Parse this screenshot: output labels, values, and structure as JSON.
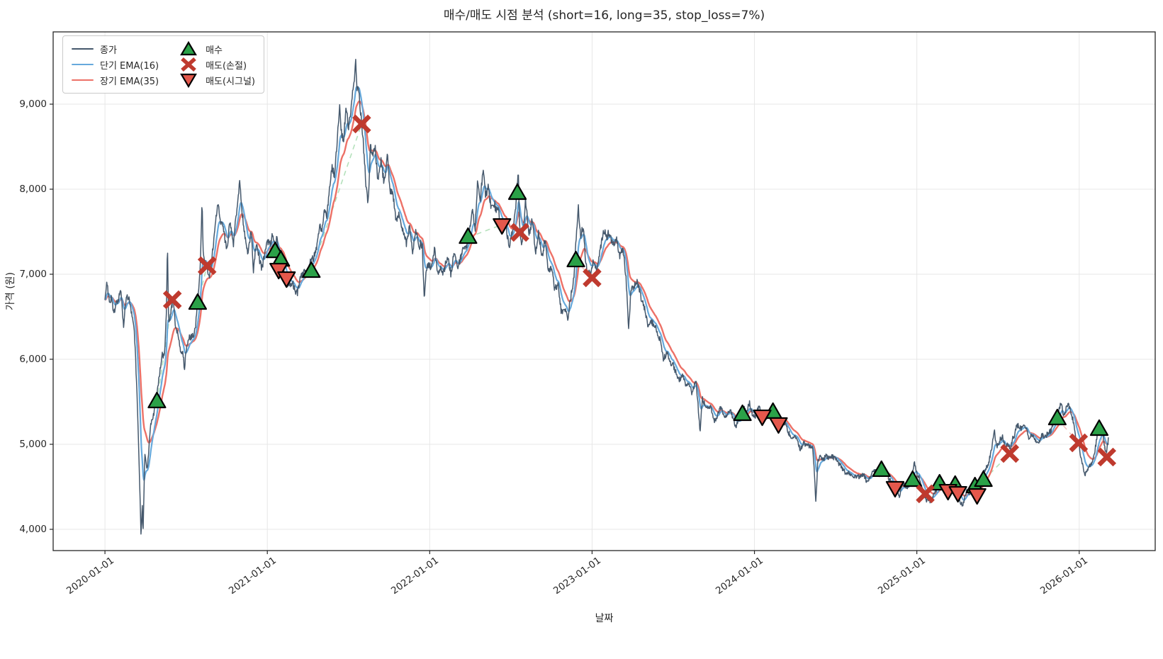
{
  "legend": {
    "items": [
      {
        "kind": "line",
        "color": "#45586c",
        "label": "종가"
      },
      {
        "kind": "line",
        "color": "#66a9dc",
        "label": "단기 EMA(16)"
      },
      {
        "kind": "line",
        "color": "#ed7167",
        "label": "장기 EMA(35)"
      },
      {
        "kind": "marker_up",
        "color": "#2ba148",
        "label": "매수"
      },
      {
        "kind": "marker_x",
        "color": "#bf3a2e",
        "label": "매도(손절)"
      },
      {
        "kind": "marker_down",
        "color": "#e4584c",
        "label": "매도(시그널)"
      }
    ]
  },
  "colors": {
    "close": "#45586c",
    "ema_short": "#66a9dc",
    "ema_long": "#ed7167",
    "buy": "#2ba148",
    "sell_stop": "#bf3a2e",
    "sell_signal": "#e4584c",
    "marker_edge": "#000000",
    "grid": "#e7e7e7",
    "frame": "#262626",
    "text": "#262626",
    "hold_win": "#a8dcb0",
    "hold_loss": "#f2b8b2"
  },
  "chart_data": {
    "type": "line",
    "title": "매수/매도 시점 분석 (short=16, long=35, stop_loss=7%)",
    "xlabel": "날짜",
    "ylabel": "가격 (원)",
    "x_tick_labels": [
      "2020-01-01",
      "2021-01-01",
      "2022-01-01",
      "2023-01-01",
      "2024-01-01",
      "2025-01-01",
      "2026-01-01"
    ],
    "x_tick_values": [
      2020,
      2021,
      2022,
      2023,
      2024,
      2025,
      2026
    ],
    "y_tick_labels": [
      "4,000",
      "5,000",
      "6,000",
      "7,000",
      "8,000",
      "9,000"
    ],
    "y_tick_values": [
      4000,
      5000,
      6000,
      7000,
      8000,
      9000
    ],
    "xlim": [
      2019.681,
      2026.468
    ],
    "ylim": [
      3750,
      9850
    ],
    "grid": true,
    "legend_position": "upper left",
    "ema_short_span": 16,
    "ema_long_span": 35,
    "stop_loss_pct": 7,
    "t_unit": "decimal_year",
    "close_anchors": [
      [
        2020.0,
        6750
      ],
      [
        2020.01,
        6900
      ],
      [
        2020.025,
        6650
      ],
      [
        2020.04,
        6800
      ],
      [
        2020.055,
        6550
      ],
      [
        2020.075,
        6700
      ],
      [
        2020.1,
        6720
      ],
      [
        2020.115,
        6450
      ],
      [
        2020.13,
        6700
      ],
      [
        2020.15,
        6670
      ],
      [
        2020.165,
        6550
      ],
      [
        2020.18,
        6400
      ],
      [
        2020.195,
        5700
      ],
      [
        2020.21,
        4800
      ],
      [
        2020.222,
        3950
      ],
      [
        2020.23,
        4300
      ],
      [
        2020.235,
        3980
      ],
      [
        2020.245,
        4850
      ],
      [
        2020.26,
        4700
      ],
      [
        2020.28,
        5200
      ],
      [
        2020.3,
        5350
      ],
      [
        2020.32,
        5550
      ],
      [
        2020.335,
        5800
      ],
      [
        2020.35,
        6100
      ],
      [
        2020.365,
        6000
      ],
      [
        2020.378,
        6450
      ],
      [
        2020.385,
        7280
      ],
      [
        2020.392,
        6400
      ],
      [
        2020.405,
        6600
      ],
      [
        2020.42,
        6730
      ],
      [
        2020.435,
        6400
      ],
      [
        2020.45,
        6350
      ],
      [
        2020.465,
        6100
      ],
      [
        2020.48,
        6150
      ],
      [
        2020.49,
        5880
      ],
      [
        2020.505,
        6150
      ],
      [
        2020.52,
        6250
      ],
      [
        2020.54,
        6300
      ],
      [
        2020.555,
        6350
      ],
      [
        2020.57,
        6650
      ],
      [
        2020.585,
        7000
      ],
      [
        2020.598,
        7900
      ],
      [
        2020.605,
        7300
      ],
      [
        2020.615,
        7200
      ],
      [
        2020.63,
        7100
      ],
      [
        2020.645,
        6950
      ],
      [
        2020.66,
        7200
      ],
      [
        2020.675,
        7450
      ],
      [
        2020.695,
        7800
      ],
      [
        2020.71,
        7550
      ],
      [
        2020.73,
        7600
      ],
      [
        2020.75,
        7350
      ],
      [
        2020.77,
        7550
      ],
      [
        2020.79,
        7300
      ],
      [
        2020.81,
        7650
      ],
      [
        2020.83,
        8040
      ],
      [
        2020.845,
        7650
      ],
      [
        2020.86,
        7500
      ],
      [
        2020.88,
        7250
      ],
      [
        2020.9,
        7450
      ],
      [
        2020.915,
        7000
      ],
      [
        2020.93,
        7350
      ],
      [
        2020.95,
        7200
      ],
      [
        2020.97,
        7100
      ],
      [
        2020.99,
        7250
      ],
      [
        2021.01,
        7350
      ],
      [
        2021.03,
        7450
      ],
      [
        2021.05,
        7300
      ],
      [
        2021.06,
        7450
      ],
      [
        2021.07,
        7100
      ],
      [
        2021.08,
        7230
      ],
      [
        2021.095,
        7080
      ],
      [
        2021.11,
        7000
      ],
      [
        2021.125,
        6900
      ],
      [
        2021.14,
        6880
      ],
      [
        2021.155,
        6980
      ],
      [
        2021.17,
        6800
      ],
      [
        2021.185,
        6750
      ],
      [
        2021.2,
        6900
      ],
      [
        2021.22,
        6950
      ],
      [
        2021.24,
        7000
      ],
      [
        2021.26,
        7080
      ],
      [
        2021.28,
        7150
      ],
      [
        2021.3,
        7300
      ],
      [
        2021.32,
        7550
      ],
      [
        2021.335,
        7450
      ],
      [
        2021.35,
        7700
      ],
      [
        2021.365,
        7600
      ],
      [
        2021.38,
        7900
      ],
      [
        2021.4,
        8250
      ],
      [
        2021.415,
        8100
      ],
      [
        2021.43,
        8500
      ],
      [
        2021.445,
        8900
      ],
      [
        2021.455,
        8600
      ],
      [
        2021.47,
        8500
      ],
      [
        2021.485,
        8930
      ],
      [
        2021.5,
        8700
      ],
      [
        2021.515,
        8900
      ],
      [
        2021.53,
        9250
      ],
      [
        2021.545,
        9530
      ],
      [
        2021.552,
        9100
      ],
      [
        2021.56,
        9230
      ],
      [
        2021.572,
        8900
      ],
      [
        2021.582,
        8750
      ],
      [
        2021.595,
        8450
      ],
      [
        2021.61,
        7950
      ],
      [
        2021.622,
        7800
      ],
      [
        2021.635,
        8500
      ],
      [
        2021.65,
        8350
      ],
      [
        2021.665,
        8450
      ],
      [
        2021.68,
        8100
      ],
      [
        2021.7,
        8300
      ],
      [
        2021.72,
        8000
      ],
      [
        2021.74,
        8350
      ],
      [
        2021.755,
        7950
      ],
      [
        2021.775,
        7850
      ],
      [
        2021.795,
        7550
      ],
      [
        2021.815,
        7700
      ],
      [
        2021.835,
        7600
      ],
      [
        2021.855,
        7400
      ],
      [
        2021.875,
        7600
      ],
      [
        2021.895,
        7300
      ],
      [
        2021.915,
        7500
      ],
      [
        2021.935,
        7250
      ],
      [
        2021.955,
        7350
      ],
      [
        2021.967,
        6750
      ],
      [
        2021.98,
        7000
      ],
      [
        2021.995,
        7100
      ],
      [
        2022.01,
        7050
      ],
      [
        2022.03,
        7250
      ],
      [
        2022.05,
        6950
      ],
      [
        2022.07,
        7100
      ],
      [
        2022.09,
        7000
      ],
      [
        2022.11,
        7150
      ],
      [
        2022.13,
        7000
      ],
      [
        2022.15,
        7250
      ],
      [
        2022.17,
        7100
      ],
      [
        2022.19,
        7250
      ],
      [
        2022.21,
        7350
      ],
      [
        2022.23,
        7400
      ],
      [
        2022.25,
        7600
      ],
      [
        2022.265,
        7830
      ],
      [
        2022.28,
        7500
      ],
      [
        2022.295,
        8040
      ],
      [
        2022.31,
        7800
      ],
      [
        2022.33,
        8200
      ],
      [
        2022.345,
        7900
      ],
      [
        2022.36,
        8100
      ],
      [
        2022.38,
        7800
      ],
      [
        2022.4,
        7900
      ],
      [
        2022.42,
        7700
      ],
      [
        2022.44,
        7620
      ],
      [
        2022.455,
        7500
      ],
      [
        2022.47,
        7550
      ],
      [
        2022.49,
        7400
      ],
      [
        2022.51,
        7600
      ],
      [
        2022.53,
        7800
      ],
      [
        2022.545,
        8250
      ],
      [
        2022.552,
        7700
      ],
      [
        2022.56,
        7400
      ],
      [
        2022.57,
        7350
      ],
      [
        2022.59,
        7850
      ],
      [
        2022.61,
        7500
      ],
      [
        2022.63,
        7600
      ],
      [
        2022.65,
        7300
      ],
      [
        2022.67,
        7500
      ],
      [
        2022.69,
        7200
      ],
      [
        2022.71,
        7350
      ],
      [
        2022.73,
        7000
      ],
      [
        2022.75,
        7150
      ],
      [
        2022.77,
        6850
      ],
      [
        2022.79,
        6950
      ],
      [
        2022.81,
        6550
      ],
      [
        2022.83,
        6650
      ],
      [
        2022.85,
        6475
      ],
      [
        2022.87,
        6700
      ],
      [
        2022.89,
        7000
      ],
      [
        2022.905,
        7450
      ],
      [
        2022.915,
        7800
      ],
      [
        2022.93,
        7450
      ],
      [
        2022.945,
        7550
      ],
      [
        2022.96,
        7200
      ],
      [
        2022.975,
        7000
      ],
      [
        2022.99,
        6950
      ],
      [
        2023.01,
        7100
      ],
      [
        2023.03,
        7000
      ],
      [
        2023.05,
        7300
      ],
      [
        2023.07,
        7500
      ],
      [
        2023.09,
        7400
      ],
      [
        2023.11,
        7500
      ],
      [
        2023.13,
        7300
      ],
      [
        2023.15,
        7350
      ],
      [
        2023.17,
        7150
      ],
      [
        2023.19,
        7250
      ],
      [
        2023.21,
        6900
      ],
      [
        2023.225,
        6300
      ],
      [
        2023.24,
        6750
      ],
      [
        2023.26,
        6800
      ],
      [
        2023.28,
        6850
      ],
      [
        2023.3,
        6700
      ],
      [
        2023.33,
        6500
      ],
      [
        2023.36,
        6400
      ],
      [
        2023.39,
        6350
      ],
      [
        2023.42,
        6200
      ],
      [
        2023.44,
        5950
      ],
      [
        2023.46,
        6100
      ],
      [
        2023.49,
        5950
      ],
      [
        2023.52,
        5850
      ],
      [
        2023.55,
        5800
      ],
      [
        2023.58,
        5700
      ],
      [
        2023.61,
        5650
      ],
      [
        2023.64,
        5750
      ],
      [
        2023.665,
        5120
      ],
      [
        2023.68,
        5500
      ],
      [
        2023.7,
        5450
      ],
      [
        2023.73,
        5400
      ],
      [
        2023.76,
        5300
      ],
      [
        2023.79,
        5400
      ],
      [
        2023.82,
        5300
      ],
      [
        2023.85,
        5350
      ],
      [
        2023.88,
        5250
      ],
      [
        2023.91,
        5320
      ],
      [
        2023.93,
        5400
      ],
      [
        2023.95,
        5350
      ],
      [
        2023.97,
        5500
      ],
      [
        2023.99,
        5380
      ],
      [
        2024.01,
        5350
      ],
      [
        2024.03,
        5400
      ],
      [
        2024.05,
        5300
      ],
      [
        2024.07,
        5280
      ],
      [
        2024.09,
        5350
      ],
      [
        2024.11,
        5420
      ],
      [
        2024.13,
        5300
      ],
      [
        2024.15,
        5230
      ],
      [
        2024.17,
        5280
      ],
      [
        2024.2,
        5150
      ],
      [
        2024.23,
        5100
      ],
      [
        2024.26,
        5050
      ],
      [
        2024.28,
        4950
      ],
      [
        2024.3,
        5020
      ],
      [
        2024.33,
        4980
      ],
      [
        2024.36,
        4900
      ],
      [
        2024.378,
        4330
      ],
      [
        2024.39,
        4850
      ],
      [
        2024.42,
        4850
      ],
      [
        2024.45,
        4800
      ],
      [
        2024.48,
        4820
      ],
      [
        2024.51,
        4750
      ],
      [
        2024.54,
        4700
      ],
      [
        2024.57,
        4680
      ],
      [
        2024.6,
        4650
      ],
      [
        2024.63,
        4600
      ],
      [
        2024.66,
        4620
      ],
      [
        2024.69,
        4580
      ],
      [
        2024.72,
        4620
      ],
      [
        2024.75,
        4650
      ],
      [
        2024.78,
        4700
      ],
      [
        2024.8,
        4680
      ],
      [
        2024.83,
        4550
      ],
      [
        2024.86,
        4500
      ],
      [
        2024.88,
        4450
      ],
      [
        2024.895,
        4380
      ],
      [
        2024.91,
        4500
      ],
      [
        2024.93,
        4480
      ],
      [
        2024.95,
        4550
      ],
      [
        2024.97,
        4620
      ],
      [
        2024.985,
        4770
      ],
      [
        2025.0,
        4700
      ],
      [
        2025.02,
        4550
      ],
      [
        2025.04,
        4430
      ],
      [
        2025.06,
        4380
      ],
      [
        2025.08,
        4320
      ],
      [
        2025.1,
        4420
      ],
      [
        2025.12,
        4480
      ],
      [
        2025.14,
        4560
      ],
      [
        2025.16,
        4500
      ],
      [
        2025.18,
        4470
      ],
      [
        2025.2,
        4450
      ],
      [
        2025.22,
        4500
      ],
      [
        2025.24,
        4530
      ],
      [
        2025.255,
        4440
      ],
      [
        2025.27,
        4340
      ],
      [
        2025.285,
        4290
      ],
      [
        2025.3,
        4400
      ],
      [
        2025.32,
        4430
      ],
      [
        2025.34,
        4480
      ],
      [
        2025.355,
        4520
      ],
      [
        2025.37,
        4440
      ],
      [
        2025.385,
        4530
      ],
      [
        2025.4,
        4580
      ],
      [
        2025.42,
        4650
      ],
      [
        2025.44,
        4750
      ],
      [
        2025.46,
        4900
      ],
      [
        2025.478,
        5200
      ],
      [
        2025.49,
        5000
      ],
      [
        2025.51,
        5050
      ],
      [
        2025.53,
        5100
      ],
      [
        2025.545,
        4950
      ],
      [
        2025.56,
        5000
      ],
      [
        2025.575,
        4900
      ],
      [
        2025.59,
        5080
      ],
      [
        2025.61,
        5150
      ],
      [
        2025.63,
        5220
      ],
      [
        2025.65,
        5150
      ],
      [
        2025.67,
        5200
      ],
      [
        2025.69,
        5050
      ],
      [
        2025.71,
        5120
      ],
      [
        2025.73,
        5080
      ],
      [
        2025.75,
        5050
      ],
      [
        2025.77,
        5100
      ],
      [
        2025.79,
        5080
      ],
      [
        2025.81,
        5150
      ],
      [
        2025.83,
        5200
      ],
      [
        2025.85,
        5250
      ],
      [
        2025.87,
        5320
      ],
      [
        2025.89,
        5470
      ],
      [
        2025.91,
        5380
      ],
      [
        2025.93,
        5440
      ],
      [
        2025.95,
        5350
      ],
      [
        2025.965,
        5300
      ],
      [
        2025.98,
        5050
      ],
      [
        2026.0,
        5000
      ],
      [
        2026.02,
        4780
      ],
      [
        2026.035,
        4650
      ],
      [
        2026.05,
        4750
      ],
      [
        2026.07,
        4800
      ],
      [
        2026.09,
        4900
      ],
      [
        2026.11,
        5100
      ],
      [
        2026.125,
        5180
      ],
      [
        2026.14,
        5220
      ],
      [
        2026.155,
        4950
      ],
      [
        2026.17,
        4880
      ],
      [
        2026.18,
        5050
      ]
    ],
    "signals": {
      "buy": [
        [
          2020.32,
          5500
        ],
        [
          2020.571,
          6658
        ],
        [
          2021.048,
          7265
        ],
        [
          2021.083,
          7165
        ],
        [
          2021.271,
          7033
        ],
        [
          2022.236,
          7433
        ],
        [
          2022.54,
          7950
        ],
        [
          2022.9,
          7158
        ],
        [
          2023.926,
          5350
        ],
        [
          2024.114,
          5375
        ],
        [
          2024.782,
          4692
        ],
        [
          2024.974,
          4575
        ],
        [
          2025.14,
          4533
        ],
        [
          2025.236,
          4517
        ],
        [
          2025.358,
          4500
        ],
        [
          2025.41,
          4575
        ],
        [
          2025.865,
          5300
        ],
        [
          2026.123,
          5175
        ]
      ],
      "sell_stop": [
        [
          2020.415,
          6700
        ],
        [
          2020.629,
          7100
        ],
        [
          2021.581,
          8767
        ],
        [
          2022.555,
          7492
        ],
        [
          2023.0,
          6958
        ],
        [
          2025.052,
          4417
        ],
        [
          2025.572,
          4892
        ],
        [
          2025.996,
          5017
        ],
        [
          2026.17,
          4850
        ]
      ],
      "sell_signal": [
        [
          2021.07,
          7058
        ],
        [
          2021.118,
          6958
        ],
        [
          2022.445,
          7583
        ],
        [
          2024.048,
          5333
        ],
        [
          2024.148,
          5242
        ],
        [
          2024.866,
          4492
        ],
        [
          2025.192,
          4458
        ],
        [
          2025.253,
          4433
        ],
        [
          2025.371,
          4408
        ]
      ]
    }
  }
}
